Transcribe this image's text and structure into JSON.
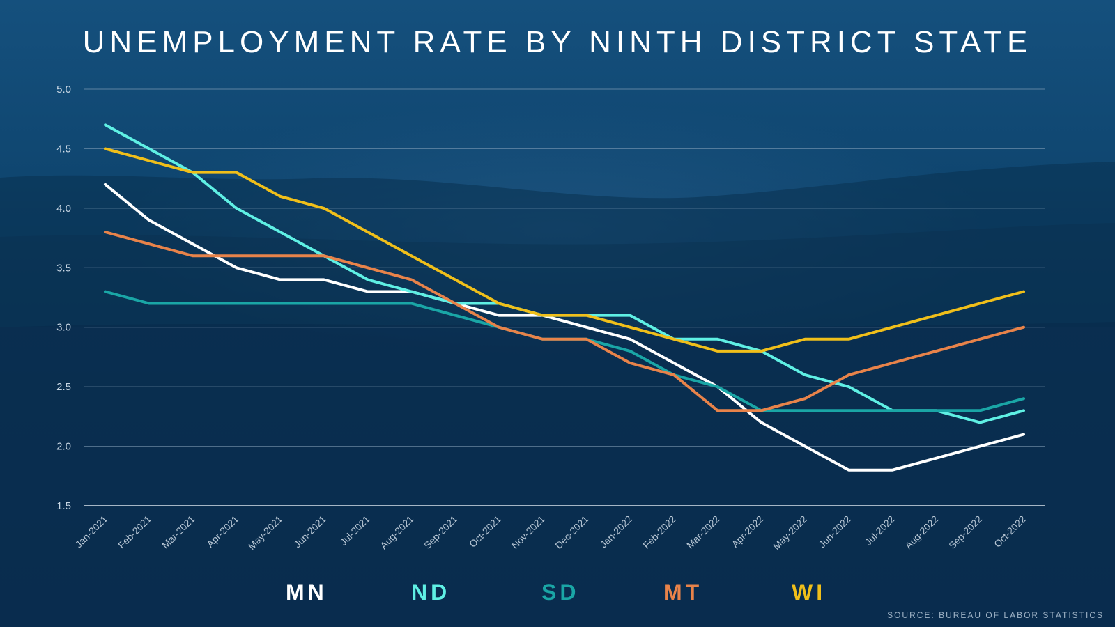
{
  "title": "UNEMPLOYMENT RATE BY NINTH DISTRICT STATE",
  "source": "SOURCE: BUREAU OF LABOR STATISTICS",
  "chart_data": {
    "type": "line",
    "title": "UNEMPLOYMENT RATE BY NINTH DISTRICT STATE",
    "xlabel": "",
    "ylabel": "",
    "ylim": [
      1.5,
      5.0
    ],
    "yticks": [
      "1.5",
      "2.0",
      "2.5",
      "3.0",
      "3.5",
      "4.0",
      "4.5",
      "5.0"
    ],
    "grid": true,
    "legend_position": "bottom",
    "categories": [
      "Jan-2021",
      "Feb-2021",
      "Mar-2021",
      "Apr-2021",
      "May-2021",
      "Jun-2021",
      "Jul-2021",
      "Aug-2021",
      "Sep-2021",
      "Oct-2021",
      "Nov-2021",
      "Dec-2021",
      "Jan-2022",
      "Feb-2022",
      "Mar-2022",
      "Apr-2022",
      "May-2022",
      "Jun-2022",
      "Jul-2022",
      "Aug-2022",
      "Sep-2022",
      "Oct-2022"
    ],
    "series": [
      {
        "name": "MN",
        "color": "#ffffff",
        "values": [
          4.2,
          3.9,
          3.7,
          3.5,
          3.4,
          3.4,
          3.3,
          3.3,
          3.2,
          3.1,
          3.1,
          3.0,
          2.9,
          2.7,
          2.5,
          2.2,
          2.0,
          1.8,
          1.8,
          1.9,
          2.0,
          2.1
        ]
      },
      {
        "name": "ND",
        "color": "#5ff0e4",
        "values": [
          4.7,
          4.5,
          4.3,
          4.0,
          3.8,
          3.6,
          3.4,
          3.3,
          3.2,
          3.2,
          3.1,
          3.1,
          3.1,
          2.9,
          2.9,
          2.8,
          2.6,
          2.5,
          2.3,
          2.3,
          2.2,
          2.3
        ]
      },
      {
        "name": "SD",
        "color": "#1aa6a6",
        "values": [
          3.3,
          3.2,
          3.2,
          3.2,
          3.2,
          3.2,
          3.2,
          3.2,
          3.1,
          3.0,
          2.9,
          2.9,
          2.8,
          2.6,
          2.5,
          2.3,
          2.3,
          2.3,
          2.3,
          2.3,
          2.3,
          2.4
        ]
      },
      {
        "name": "MT",
        "color": "#e8834a",
        "values": [
          3.8,
          3.7,
          3.6,
          3.6,
          3.6,
          3.6,
          3.5,
          3.4,
          3.2,
          3.0,
          2.9,
          2.9,
          2.7,
          2.6,
          2.3,
          2.3,
          2.4,
          2.6,
          2.7,
          2.8,
          2.9,
          3.0
        ]
      },
      {
        "name": "WI",
        "color": "#f0bf1a",
        "values": [
          4.5,
          4.4,
          4.3,
          4.3,
          4.1,
          4.0,
          3.8,
          3.6,
          3.4,
          3.2,
          3.1,
          3.1,
          3.0,
          2.9,
          2.8,
          2.8,
          2.9,
          2.9,
          3.0,
          3.1,
          3.2,
          3.3
        ]
      }
    ]
  }
}
